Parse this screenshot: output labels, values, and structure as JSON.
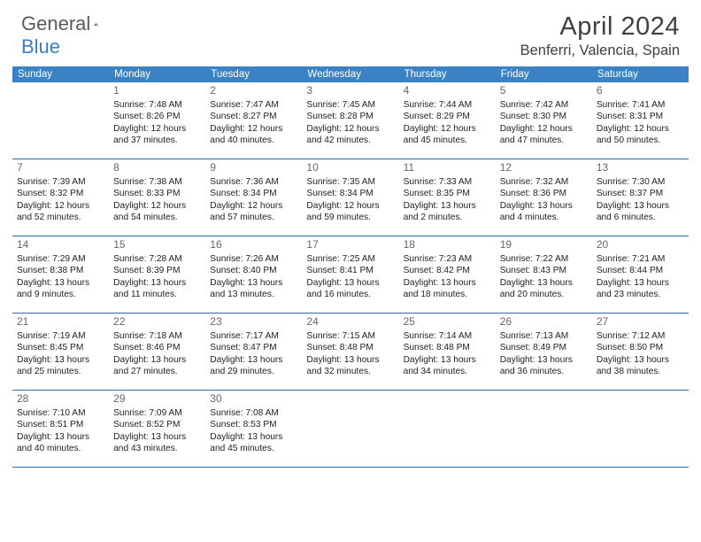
{
  "brand": {
    "part1": "General",
    "part2": "Blue"
  },
  "title": "April 2024",
  "location": "Benferri, Valencia, Spain",
  "colors": {
    "header_bg": "#3b82c4",
    "week_divider": "#2e6da4",
    "brand_gray": "#5a5a5a",
    "brand_blue": "#3b7fc4",
    "title_color": "#404040"
  },
  "dayNames": [
    "Sunday",
    "Monday",
    "Tuesday",
    "Wednesday",
    "Thursday",
    "Friday",
    "Saturday"
  ],
  "weeks": [
    [
      null,
      {
        "d": "1",
        "sr": "7:48 AM",
        "ss": "8:26 PM",
        "dl": "12 hours and 37 minutes."
      },
      {
        "d": "2",
        "sr": "7:47 AM",
        "ss": "8:27 PM",
        "dl": "12 hours and 40 minutes."
      },
      {
        "d": "3",
        "sr": "7:45 AM",
        "ss": "8:28 PM",
        "dl": "12 hours and 42 minutes."
      },
      {
        "d": "4",
        "sr": "7:44 AM",
        "ss": "8:29 PM",
        "dl": "12 hours and 45 minutes."
      },
      {
        "d": "5",
        "sr": "7:42 AM",
        "ss": "8:30 PM",
        "dl": "12 hours and 47 minutes."
      },
      {
        "d": "6",
        "sr": "7:41 AM",
        "ss": "8:31 PM",
        "dl": "12 hours and 50 minutes."
      }
    ],
    [
      {
        "d": "7",
        "sr": "7:39 AM",
        "ss": "8:32 PM",
        "dl": "12 hours and 52 minutes."
      },
      {
        "d": "8",
        "sr": "7:38 AM",
        "ss": "8:33 PM",
        "dl": "12 hours and 54 minutes."
      },
      {
        "d": "9",
        "sr": "7:36 AM",
        "ss": "8:34 PM",
        "dl": "12 hours and 57 minutes."
      },
      {
        "d": "10",
        "sr": "7:35 AM",
        "ss": "8:34 PM",
        "dl": "12 hours and 59 minutes."
      },
      {
        "d": "11",
        "sr": "7:33 AM",
        "ss": "8:35 PM",
        "dl": "13 hours and 2 minutes."
      },
      {
        "d": "12",
        "sr": "7:32 AM",
        "ss": "8:36 PM",
        "dl": "13 hours and 4 minutes."
      },
      {
        "d": "13",
        "sr": "7:30 AM",
        "ss": "8:37 PM",
        "dl": "13 hours and 6 minutes."
      }
    ],
    [
      {
        "d": "14",
        "sr": "7:29 AM",
        "ss": "8:38 PM",
        "dl": "13 hours and 9 minutes."
      },
      {
        "d": "15",
        "sr": "7:28 AM",
        "ss": "8:39 PM",
        "dl": "13 hours and 11 minutes."
      },
      {
        "d": "16",
        "sr": "7:26 AM",
        "ss": "8:40 PM",
        "dl": "13 hours and 13 minutes."
      },
      {
        "d": "17",
        "sr": "7:25 AM",
        "ss": "8:41 PM",
        "dl": "13 hours and 16 minutes."
      },
      {
        "d": "18",
        "sr": "7:23 AM",
        "ss": "8:42 PM",
        "dl": "13 hours and 18 minutes."
      },
      {
        "d": "19",
        "sr": "7:22 AM",
        "ss": "8:43 PM",
        "dl": "13 hours and 20 minutes."
      },
      {
        "d": "20",
        "sr": "7:21 AM",
        "ss": "8:44 PM",
        "dl": "13 hours and 23 minutes."
      }
    ],
    [
      {
        "d": "21",
        "sr": "7:19 AM",
        "ss": "8:45 PM",
        "dl": "13 hours and 25 minutes."
      },
      {
        "d": "22",
        "sr": "7:18 AM",
        "ss": "8:46 PM",
        "dl": "13 hours and 27 minutes."
      },
      {
        "d": "23",
        "sr": "7:17 AM",
        "ss": "8:47 PM",
        "dl": "13 hours and 29 minutes."
      },
      {
        "d": "24",
        "sr": "7:15 AM",
        "ss": "8:48 PM",
        "dl": "13 hours and 32 minutes."
      },
      {
        "d": "25",
        "sr": "7:14 AM",
        "ss": "8:48 PM",
        "dl": "13 hours and 34 minutes."
      },
      {
        "d": "26",
        "sr": "7:13 AM",
        "ss": "8:49 PM",
        "dl": "13 hours and 36 minutes."
      },
      {
        "d": "27",
        "sr": "7:12 AM",
        "ss": "8:50 PM",
        "dl": "13 hours and 38 minutes."
      }
    ],
    [
      {
        "d": "28",
        "sr": "7:10 AM",
        "ss": "8:51 PM",
        "dl": "13 hours and 40 minutes."
      },
      {
        "d": "29",
        "sr": "7:09 AM",
        "ss": "8:52 PM",
        "dl": "13 hours and 43 minutes."
      },
      {
        "d": "30",
        "sr": "7:08 AM",
        "ss": "8:53 PM",
        "dl": "13 hours and 45 minutes."
      },
      null,
      null,
      null,
      null
    ]
  ],
  "labels": {
    "sunrise": "Sunrise:",
    "sunset": "Sunset:",
    "daylight": "Daylight:"
  }
}
